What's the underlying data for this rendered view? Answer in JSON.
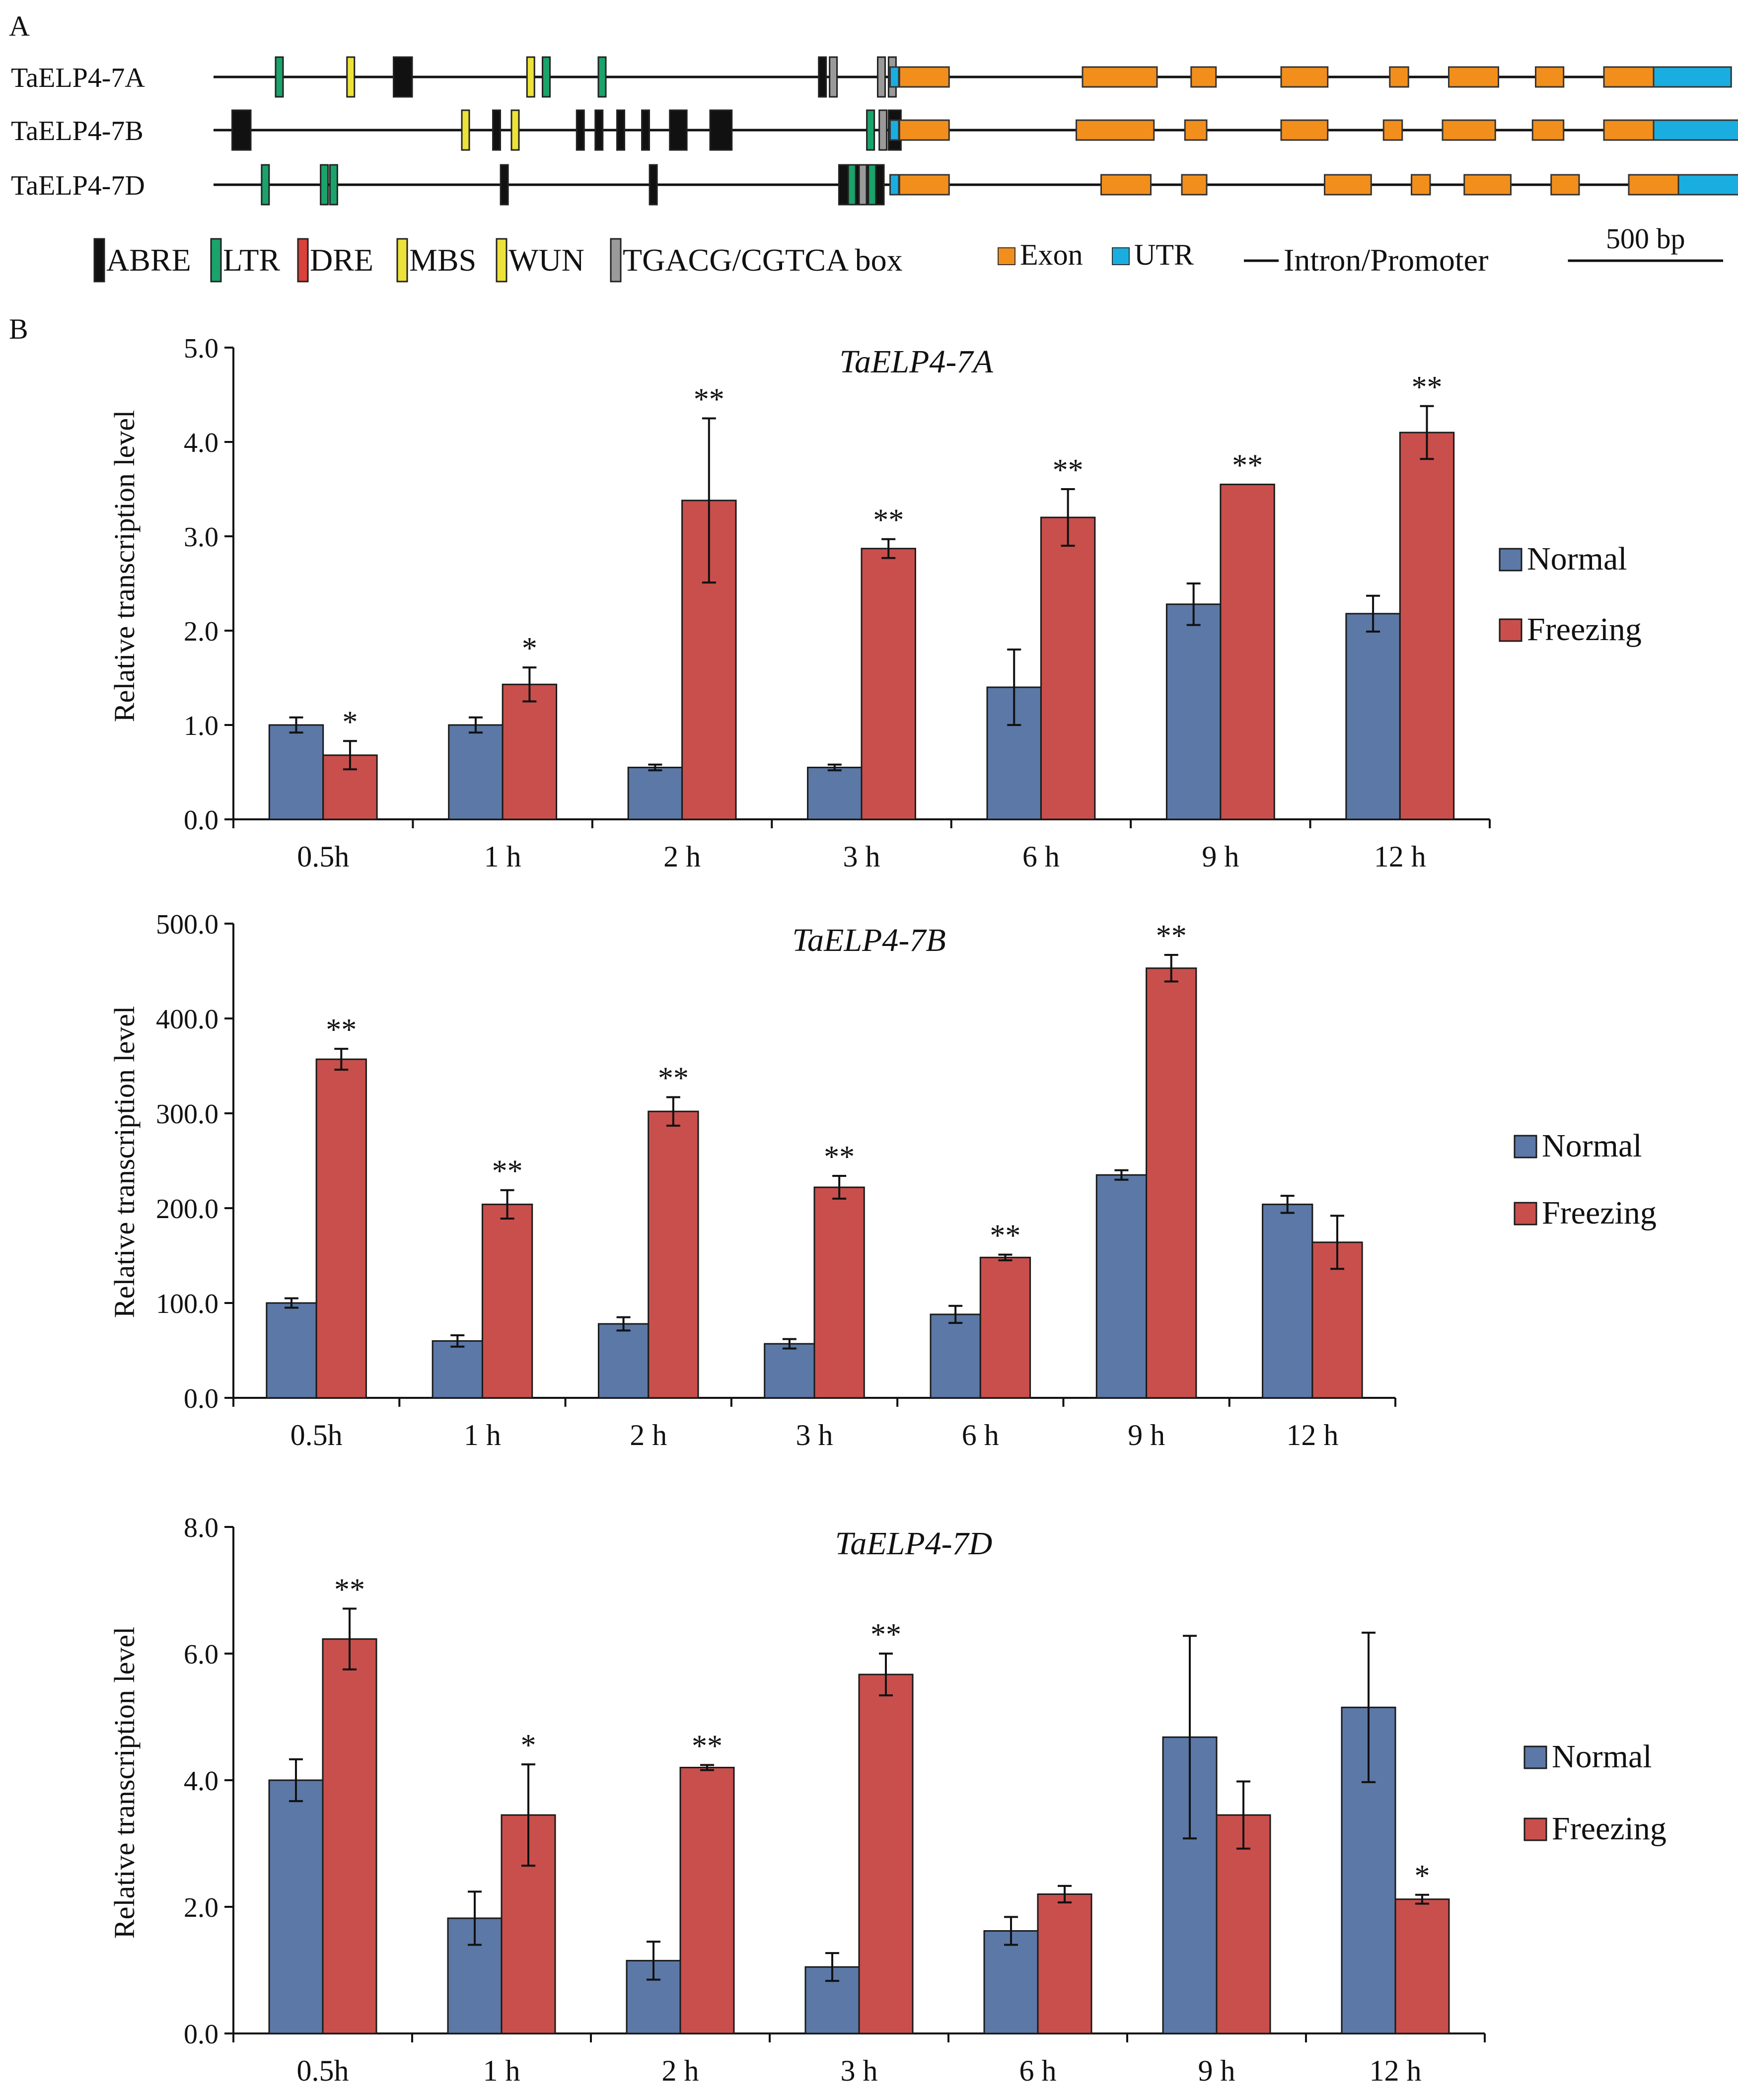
{
  "panel_labels": {
    "a": "A",
    "b": "B"
  },
  "gene_structure": {
    "bp_per_unit": 1,
    "genes": [
      {
        "name": "TaELP4-7A",
        "elements": [
          {
            "type": "LTR",
            "pos": 200
          },
          {
            "type": "WUN",
            "pos": 430
          },
          {
            "type": "ABRE",
            "pos": 580,
            "w": 60
          },
          {
            "type": "MBS",
            "pos": 1010
          },
          {
            "type": "LTR",
            "pos": 1060
          },
          {
            "type": "LTR",
            "pos": 1240
          },
          {
            "type": "ABRE",
            "pos": 1950
          },
          {
            "type": "TGACG",
            "pos": 1985
          },
          {
            "type": "TGACG",
            "pos": 2140
          },
          {
            "type": "TGACG",
            "pos": 2175
          }
        ],
        "exons": [
          [
            2210,
            2370
          ],
          [
            2800,
            3040
          ],
          [
            3150,
            3230
          ],
          [
            3440,
            3590
          ],
          [
            3790,
            3850
          ],
          [
            3980,
            4140
          ],
          [
            4260,
            4350
          ],
          [
            4480,
            4640
          ]
        ],
        "utr": [
          4640,
          4890
        ]
      },
      {
        "name": "TaELP4-7B",
        "elements": [
          {
            "type": "ABRE",
            "pos": 60,
            "w": 60
          },
          {
            "type": "MBS",
            "pos": 800
          },
          {
            "type": "ABRE",
            "pos": 900
          },
          {
            "type": "WUN",
            "pos": 960
          },
          {
            "type": "ABRE",
            "pos": 1170
          },
          {
            "type": "ABRE",
            "pos": 1230
          },
          {
            "type": "ABRE",
            "pos": 1300
          },
          {
            "type": "ABRE",
            "pos": 1380
          },
          {
            "type": "ABRE",
            "pos": 1470,
            "w": 55
          },
          {
            "type": "ABRE",
            "pos": 1600,
            "w": 70
          },
          {
            "type": "LTR",
            "pos": 2105
          },
          {
            "type": "TGACG",
            "pos": 2145
          },
          {
            "type": "ABRE",
            "pos": 2175,
            "w": 40
          }
        ],
        "exons": [
          [
            2210,
            2370
          ],
          [
            2780,
            3030
          ],
          [
            3130,
            3200
          ],
          [
            3440,
            3590
          ],
          [
            3770,
            3830
          ],
          [
            3960,
            4130
          ],
          [
            4250,
            4350
          ],
          [
            4480,
            4640
          ]
        ],
        "utr": [
          4640,
          4970
        ]
      },
      {
        "name": "TaELP4-7D",
        "elements": [
          {
            "type": "LTR",
            "pos": 155
          },
          {
            "type": "LTR",
            "pos": 345
          },
          {
            "type": "LTR",
            "pos": 375
          },
          {
            "type": "ABRE",
            "pos": 925
          },
          {
            "type": "ABRE",
            "pos": 1405
          },
          {
            "type": "ABRE",
            "pos": 2015,
            "w": 145
          },
          {
            "type": "LTR",
            "pos": 2045
          },
          {
            "type": "TGACG",
            "pos": 2080
          },
          {
            "type": "LTR",
            "pos": 2110
          }
        ],
        "exons": [
          [
            2210,
            2370
          ],
          [
            2860,
            3020
          ],
          [
            3120,
            3200
          ],
          [
            3580,
            3730
          ],
          [
            3860,
            3920
          ],
          [
            4030,
            4180
          ],
          [
            4310,
            4400
          ],
          [
            4560,
            4720
          ]
        ],
        "utr": [
          4720,
          5040
        ]
      }
    ],
    "legend": [
      {
        "key": "ABRE",
        "label": "ABRE",
        "color": "#111111"
      },
      {
        "key": "LTR",
        "label": "LTR",
        "color": "#1aa36b"
      },
      {
        "key": "DRE",
        "label": "DRE",
        "color": "#d9413a"
      },
      {
        "key": "MBS",
        "label": "MBS",
        "color": "#ece23a"
      },
      {
        "key": "WUN",
        "label": "WUN",
        "color": "#ece23a"
      },
      {
        "key": "TGACG",
        "label": "TGACG/CGTCA box",
        "color": "#9a9a9a"
      },
      {
        "key": "Exon",
        "label": "Exon",
        "color": "#f28f1c"
      },
      {
        "key": "UTR",
        "label": "UTR",
        "color": "#1aaee0"
      },
      {
        "key": "Intron",
        "label": "Intron/Promoter",
        "color": "#111111"
      }
    ],
    "scale_bar_label": "500 bp",
    "scale_bar_bp": 500
  },
  "chart_data": [
    {
      "type": "bar",
      "title": "TaELP4-7A",
      "ylabel": "Relative transcription level",
      "categories": [
        "0.5h",
        "1 h",
        "2 h",
        "3 h",
        "6 h",
        "9 h",
        "12 h"
      ],
      "ylim": [
        0,
        5
      ],
      "yticks": [
        "0.0",
        "1.0",
        "2.0",
        "3.0",
        "4.0",
        "5.0"
      ],
      "series": [
        {
          "name": "Normal",
          "color": "#5b78a6",
          "values": [
            1.0,
            1.0,
            0.55,
            0.55,
            1.4,
            2.28,
            2.18
          ],
          "errors": [
            0.08,
            0.08,
            0.03,
            0.03,
            0.4,
            0.22,
            0.19
          ]
        },
        {
          "name": "Freezing",
          "color": "#c94f4c",
          "values": [
            0.68,
            1.43,
            3.38,
            2.87,
            3.2,
            3.55,
            4.1
          ],
          "errors": [
            0.15,
            0.18,
            0.87,
            0.1,
            0.3,
            0.0,
            0.28
          ]
        }
      ],
      "significance": [
        "*",
        "*",
        "**",
        "**",
        "**",
        "**",
        "**"
      ]
    },
    {
      "type": "bar",
      "title": "TaELP4-7B",
      "ylabel": "Relative transcription level",
      "categories": [
        "0.5h",
        "1 h",
        "2 h",
        "3 h",
        "6 h",
        "9 h",
        "12 h"
      ],
      "ylim": [
        0,
        500
      ],
      "yticks": [
        "0.0",
        "100.0",
        "200.0",
        "300.0",
        "400.0",
        "500.0"
      ],
      "series": [
        {
          "name": "Normal",
          "color": "#5b78a6",
          "values": [
            100,
            60,
            78,
            57,
            88,
            235,
            204
          ],
          "errors": [
            5,
            6,
            7,
            5,
            9,
            5,
            9
          ]
        },
        {
          "name": "Freezing",
          "color": "#c94f4c",
          "values": [
            357,
            204,
            302,
            222,
            148,
            453,
            164
          ],
          "errors": [
            11,
            15,
            15,
            12,
            3,
            14,
            28
          ]
        }
      ],
      "significance": [
        "**",
        "**",
        "**",
        "**",
        "**",
        "**",
        ""
      ]
    },
    {
      "type": "bar",
      "title": "TaELP4-7D",
      "ylabel": "Relative transcription level",
      "categories": [
        "0.5h",
        "1 h",
        "2 h",
        "3 h",
        "6 h",
        "9 h",
        "12 h"
      ],
      "ylim": [
        0,
        8
      ],
      "yticks": [
        "0.0",
        "2.0",
        "4.0",
        "6.0",
        "8.0"
      ],
      "series": [
        {
          "name": "Normal",
          "color": "#5b78a6",
          "values": [
            4.0,
            1.82,
            1.15,
            1.05,
            1.62,
            4.68,
            5.15
          ],
          "errors": [
            0.33,
            0.42,
            0.3,
            0.22,
            0.22,
            1.6,
            1.18
          ]
        },
        {
          "name": "Freezing",
          "color": "#c94f4c",
          "values": [
            6.23,
            3.45,
            4.2,
            5.67,
            2.2,
            3.45,
            2.12
          ],
          "errors": [
            0.48,
            0.8,
            0.04,
            0.33,
            0.13,
            0.53,
            0.07
          ]
        }
      ],
      "significance": [
        "**",
        "*",
        "**",
        "**",
        "",
        "",
        "*"
      ]
    }
  ]
}
